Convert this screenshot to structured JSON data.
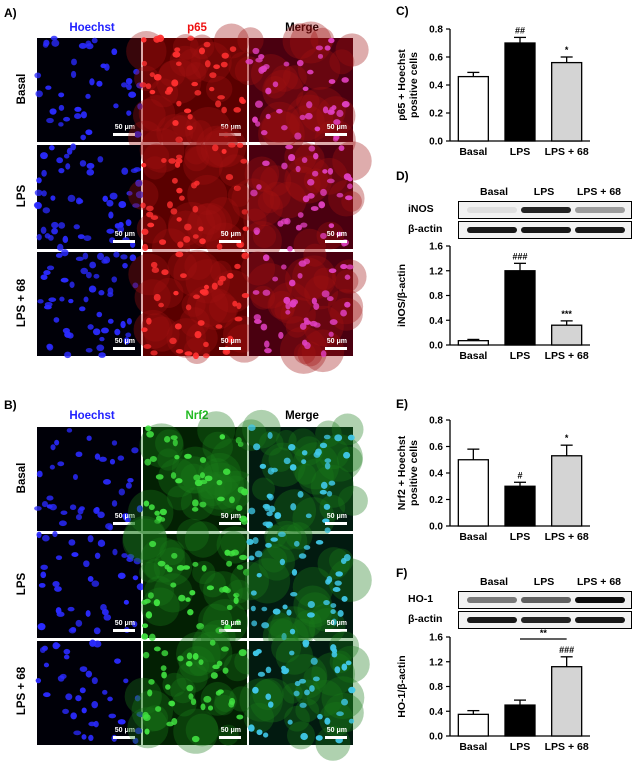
{
  "colors": {
    "hoechst": "#1a1aff",
    "p65": "#e02020",
    "nrf2": "#18b018",
    "bar_basal": "#ffffff",
    "bar_lps": "#000000",
    "bar_lps68": "#d4d4d4"
  },
  "panel_a": {
    "letter": "A)",
    "columns": [
      {
        "label": "Hoechst",
        "color": "#2222ff"
      },
      {
        "label": "p65",
        "color": "#ee1111"
      },
      {
        "label": "Merge",
        "color": "#000000"
      }
    ],
    "rows": [
      "Basal",
      "LPS",
      "LPS + 68"
    ],
    "scale_label": "50 μm"
  },
  "panel_b": {
    "letter": "B)",
    "columns": [
      {
        "label": "Hoechst",
        "color": "#2222ff"
      },
      {
        "label": "Nrf2",
        "color": "#22bb22"
      },
      {
        "label": "Merge",
        "color": "#000000"
      }
    ],
    "rows": [
      "Basal",
      "LPS",
      "LPS + 68"
    ],
    "scale_label": "50 μm"
  },
  "panel_d_blot": {
    "header": [
      "Basal",
      "LPS",
      "LPS + 68"
    ],
    "rows": [
      "iNOS",
      "β-actin"
    ]
  },
  "panel_f_blot": {
    "header": [
      "Basal",
      "LPS",
      "LPS + 68"
    ],
    "rows": [
      "HO-1",
      "β-actin"
    ]
  },
  "chart_data": [
    {
      "id": "C",
      "letter": "C)",
      "type": "bar",
      "categories": [
        "Basal",
        "LPS",
        "LPS + 68"
      ],
      "values": [
        0.46,
        0.7,
        0.56
      ],
      "errors": [
        0.03,
        0.04,
        0.04
      ],
      "annotations": [
        "",
        "##",
        "*"
      ],
      "ylabel": "p65 + Hoechst\npositive cells",
      "ylim": [
        0,
        0.8
      ],
      "yticks": [
        0.0,
        0.2,
        0.4,
        0.6,
        0.8
      ],
      "ytick_labels": [
        "0.0",
        "0.2",
        "0.4",
        "0.6",
        "0.8"
      ]
    },
    {
      "id": "D",
      "letter": "D)",
      "type": "bar",
      "categories": [
        "Basal",
        "LPS",
        "LPS + 68"
      ],
      "values": [
        0.07,
        1.2,
        0.32
      ],
      "errors": [
        0.02,
        0.12,
        0.07
      ],
      "annotations": [
        "",
        "###",
        "***"
      ],
      "ylabel": "iNOS/β-actin",
      "ylim": [
        0,
        1.6
      ],
      "yticks": [
        0.0,
        0.4,
        0.8,
        1.2,
        1.6
      ],
      "ytick_labels": [
        "0.0",
        "0.4",
        "0.8",
        "1.2",
        "1.6"
      ]
    },
    {
      "id": "E",
      "letter": "E)",
      "type": "bar",
      "categories": [
        "Basal",
        "LPS",
        "LPS + 68"
      ],
      "values": [
        0.5,
        0.3,
        0.53
      ],
      "errors": [
        0.08,
        0.03,
        0.08
      ],
      "annotations": [
        "",
        "#",
        "*"
      ],
      "ylabel": "Nrf2 + Hoechst\npositive cells",
      "ylim": [
        0,
        0.8
      ],
      "yticks": [
        0.0,
        0.2,
        0.4,
        0.6,
        0.8
      ],
      "ytick_labels": [
        "0.0",
        "0.2",
        "0.4",
        "0.6",
        "0.8"
      ]
    },
    {
      "id": "F",
      "letter": "F)",
      "type": "bar",
      "categories": [
        "Basal",
        "LPS",
        "LPS + 68"
      ],
      "values": [
        0.35,
        0.5,
        1.12
      ],
      "errors": [
        0.06,
        0.08,
        0.16
      ],
      "annotations": [
        "",
        "",
        "###"
      ],
      "bracket": {
        "from": 1,
        "to": 2,
        "label": "**"
      },
      "ylabel": "HO-1/β-actin",
      "ylim": [
        0,
        1.6
      ],
      "yticks": [
        0.0,
        0.4,
        0.8,
        1.2,
        1.6
      ],
      "ytick_labels": [
        "0.0",
        "0.4",
        "0.8",
        "1.2",
        "1.6"
      ]
    }
  ]
}
